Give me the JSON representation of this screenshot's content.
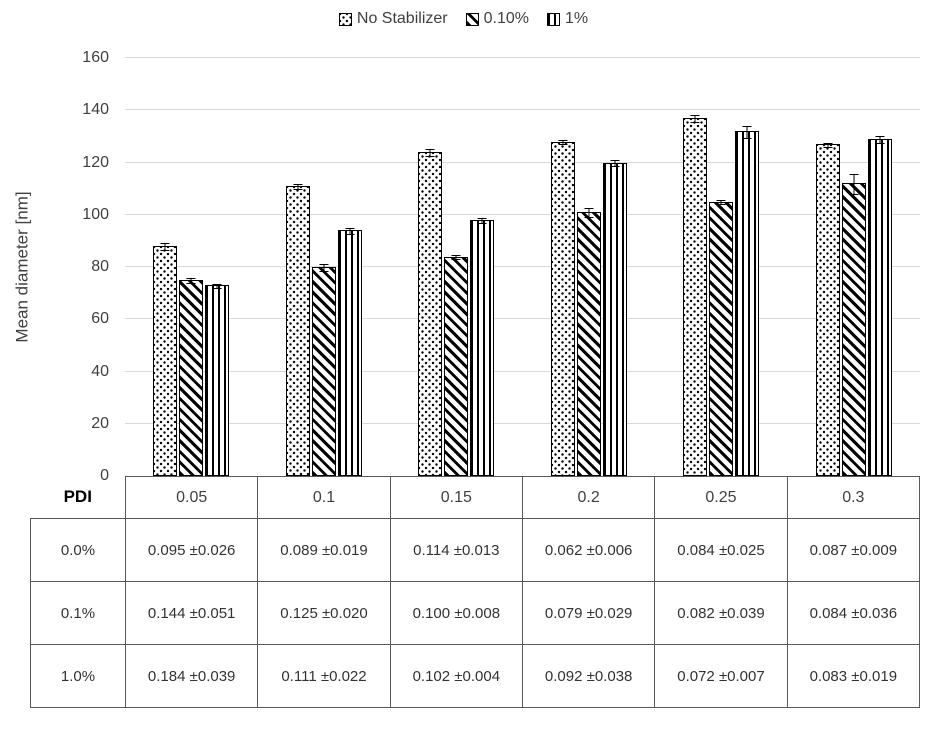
{
  "chart_data": {
    "type": "bar",
    "title": "",
    "ylabel": "Mean diameter [nm]",
    "xlabel": "PDI",
    "ylim": [
      0,
      160
    ],
    "y_ticks": [
      0,
      20,
      40,
      60,
      80,
      100,
      120,
      140,
      160
    ],
    "grid": true,
    "legend_position": "top",
    "categories": [
      "0.05",
      "0.1",
      "0.15",
      "0.2",
      "0.25",
      "0.3"
    ],
    "series": [
      {
        "name": "No Stabilizer",
        "pattern": "dots",
        "values": [
          88,
          111,
          124,
          128,
          137,
          127
        ],
        "errors": [
          1.5,
          1,
          1.5,
          1,
          1.5,
          1
        ]
      },
      {
        "name": "0.10%",
        "pattern": "diag",
        "values": [
          75,
          80,
          84,
          101,
          105,
          112
        ],
        "errors": [
          1,
          1.5,
          1,
          2,
          1,
          4
        ]
      },
      {
        "name": "1%",
        "pattern": "vert",
        "values": [
          73,
          94,
          98,
          120,
          132,
          129
        ],
        "errors": [
          1,
          1.5,
          1,
          1.5,
          2.5,
          1.5
        ]
      }
    ]
  },
  "table": {
    "corner_label": "PDI",
    "column_headers": [
      "0.05",
      "0.1",
      "0.15",
      "0.2",
      "0.25",
      "0.3"
    ],
    "rows": [
      {
        "label": "0.0%",
        "cells": [
          "0.095 ±0.026",
          "0.089 ±0.019",
          "0.114 ±0.013",
          "0.062 ±0.006",
          "0.084 ±0.025",
          "0.087 ±0.009"
        ]
      },
      {
        "label": "0.1%",
        "cells": [
          "0.144 ±0.051",
          "0.125 ±0.020",
          "0.100 ±0.008",
          "0.079 ±0.029",
          "0.082 ±0.039",
          "0.084 ±0.036"
        ]
      },
      {
        "label": "1.0%",
        "cells": [
          "0.184 ±0.039",
          "0.111 ±0.022",
          "0.102 ±0.004",
          "0.092 ±0.038",
          "0.072 ±0.007",
          "0.083 ±0.019"
        ]
      }
    ]
  }
}
